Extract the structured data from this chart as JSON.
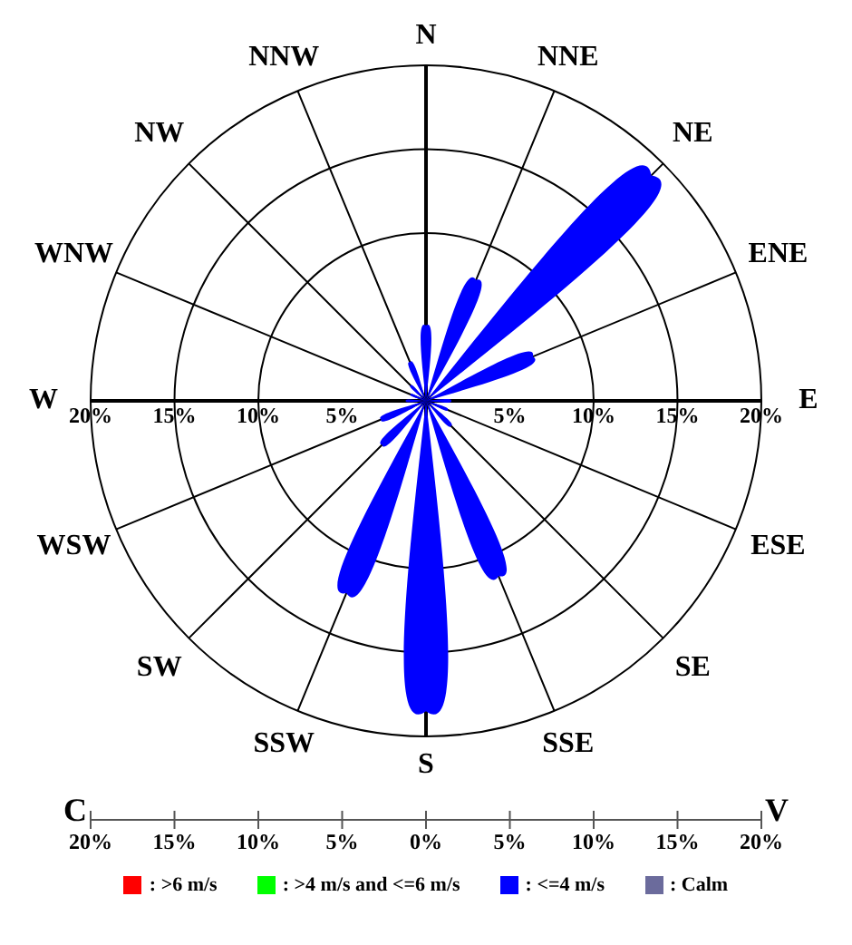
{
  "chart_data": {
    "type": "radar",
    "categories": [
      "N",
      "NNE",
      "NE",
      "ENE",
      "E",
      "ESE",
      "SE",
      "SSE",
      "S",
      "SSW",
      "SW",
      "WSW",
      "W",
      "WNW",
      "NW",
      "NNW"
    ],
    "series": [
      {
        "type": "bar",
        "name": ": <=4 m/s",
        "color": "#0000ff",
        "values": [
          4.5,
          7.8,
          19,
          6.9,
          1.5,
          1.4,
          2.1,
          11.3,
          18.5,
          12.4,
          3.7,
          2.9,
          1.2,
          1,
          1.3,
          2.5
        ]
      }
    ],
    "ylim": [
      0,
      20
    ],
    "yticks": [
      {
        "value": 5,
        "label": "5%"
      },
      {
        "value": 10,
        "label": "10%"
      },
      {
        "value": 15,
        "label": "15%"
      },
      {
        "value": 20,
        "label": "20%"
      }
    ],
    "annotations": [
      "C",
      "20%",
      "15%",
      "10%",
      "5%",
      "0%",
      "5%",
      "10%",
      "15%",
      "20%",
      "V",
      ": >6 m/s",
      ": >4 m/s and <=6 m/s",
      ": Calm"
    ],
    "grid": true,
    "legend": "bottom"
  }
}
